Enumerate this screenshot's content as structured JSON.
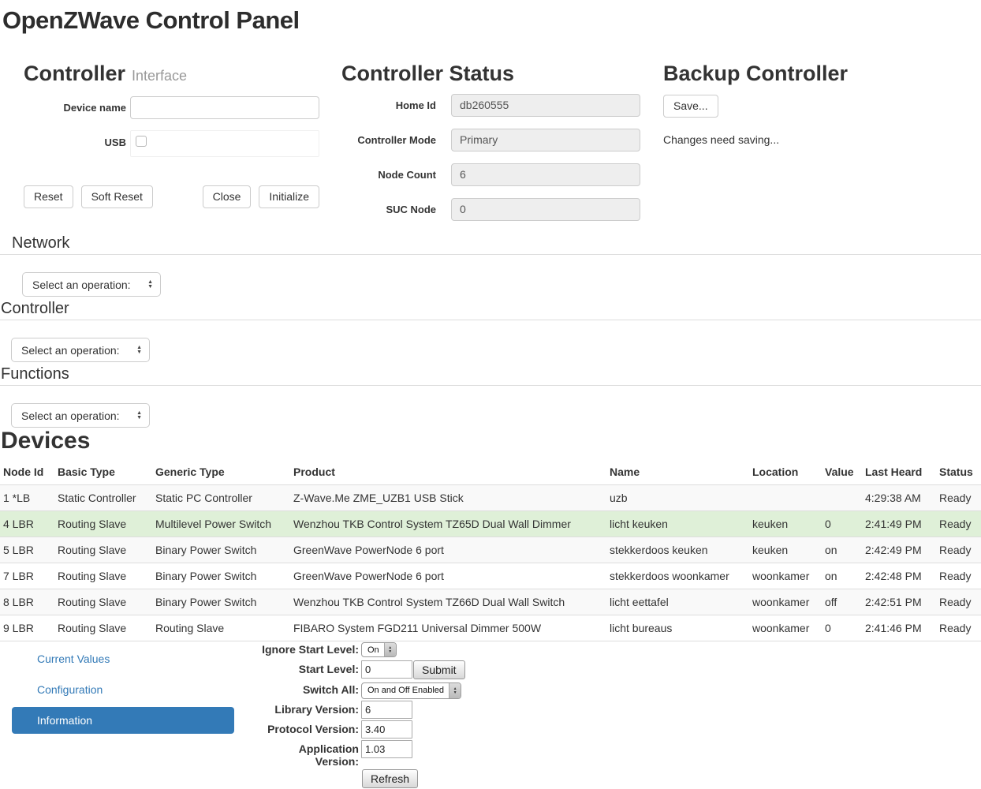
{
  "page_title": "OpenZWave Control Panel",
  "controller_interface": {
    "title": "Controller",
    "subtitle": "Interface",
    "device_name_label": "Device name",
    "device_name_value": "",
    "usb_label": "USB",
    "usb_checked": false,
    "reset_label": "Reset",
    "soft_reset_label": "Soft Reset",
    "close_label": "Close",
    "initialize_label": "Initialize"
  },
  "controller_status": {
    "title": "Controller Status",
    "fields": [
      {
        "label": "Home Id",
        "value": "db260555"
      },
      {
        "label": "Controller Mode",
        "value": "Primary"
      },
      {
        "label": "Node Count",
        "value": "6"
      },
      {
        "label": "SUC Node",
        "value": "0"
      }
    ]
  },
  "backup_controller": {
    "title": "Backup Controller",
    "save_label": "Save...",
    "status_text": "Changes need saving..."
  },
  "operations": [
    {
      "title": "Network",
      "selected": "Select an operation:"
    },
    {
      "title": "Controller",
      "selected": "Select an operation:"
    },
    {
      "title": "Functions",
      "selected": "Select an operation:"
    }
  ],
  "devices": {
    "title": "Devices",
    "columns": [
      "Node Id",
      "Basic Type",
      "Generic Type",
      "Product",
      "Name",
      "Location",
      "Value",
      "Last Heard",
      "Status"
    ],
    "rows": [
      {
        "variant": "striped",
        "cells": [
          "1 *LB",
          "Static Controller",
          "Static PC Controller",
          "Z-Wave.Me ZME_UZB1 USB Stick",
          "uzb",
          "",
          "",
          "4:29:38 AM",
          "Ready"
        ]
      },
      {
        "variant": "selected",
        "cells": [
          "4 LBR",
          "Routing Slave",
          "Multilevel Power Switch",
          "Wenzhou TKB Control System TZ65D Dual Wall Dimmer",
          "licht keuken",
          "keuken",
          "0",
          "2:41:49 PM",
          "Ready"
        ]
      },
      {
        "variant": "striped",
        "cells": [
          "5 LBR",
          "Routing Slave",
          "Binary Power Switch",
          "GreenWave PowerNode 6 port",
          "stekkerdoos keuken",
          "keuken",
          "on",
          "2:42:49 PM",
          "Ready"
        ]
      },
      {
        "variant": "plain",
        "cells": [
          "7 LBR",
          "Routing Slave",
          "Binary Power Switch",
          "GreenWave PowerNode 6 port",
          "stekkerdoos woonkamer",
          "woonkamer",
          "on",
          "2:42:48 PM",
          "Ready"
        ]
      },
      {
        "variant": "striped",
        "cells": [
          "8 LBR",
          "Routing Slave",
          "Binary Power Switch",
          "Wenzhou TKB Control System TZ66D Dual Wall Switch",
          "licht eettafel",
          "woonkamer",
          "off",
          "2:42:51 PM",
          "Ready"
        ]
      },
      {
        "variant": "plain",
        "cells": [
          "9 LBR",
          "Routing Slave",
          "Routing Slave",
          "FIBARO System FGD211 Universal Dimmer 500W",
          "licht bureaus",
          "woonkamer",
          "0",
          "2:41:46 PM",
          "Ready"
        ]
      }
    ]
  },
  "detail_panel": {
    "tabs": [
      {
        "label": "Current Values",
        "active": false
      },
      {
        "label": "Configuration",
        "active": false
      },
      {
        "label": "Information",
        "active": true
      }
    ],
    "form": {
      "ignore_start_level_label": "Ignore Start Level:",
      "ignore_start_level_value": "On",
      "start_level_label": "Start Level:",
      "start_level_value": "0",
      "submit_label": "Submit",
      "switch_all_label": "Switch All:",
      "switch_all_value": "On and Off Enabled",
      "library_version_label": "Library Version:",
      "library_version_value": "6",
      "protocol_version_label": "Protocol Version:",
      "protocol_version_value": "3.40",
      "application_version_label": "Application Version:",
      "application_version_value": "1.03",
      "refresh_label": "Refresh"
    }
  },
  "colors": {
    "accent": "#337ab7",
    "selected_row": "#dff0d8",
    "striped_row": "#f9f9f9",
    "table_border": "#dddddd",
    "disabled_input_bg": "#eeeeee"
  }
}
